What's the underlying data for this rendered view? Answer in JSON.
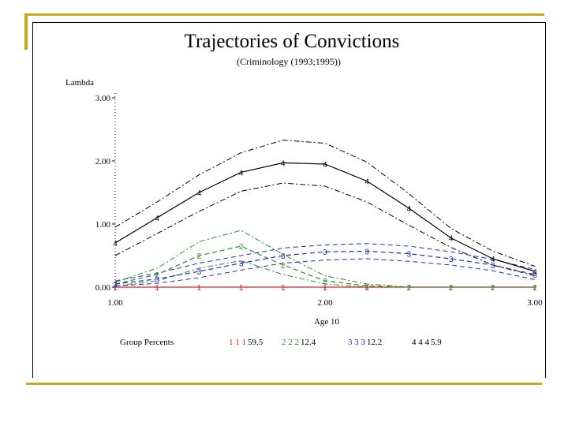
{
  "chart_data": {
    "type": "line",
    "title": "Trajectories of Convictions",
    "subtitle": "(Criminology (1993;1995))",
    "ylabel": "Lambda",
    "xlabel": "Age 10",
    "xlim": [
      1.0,
      3.0
    ],
    "ylim": [
      0.0,
      3.0
    ],
    "x_ticks": [
      "1.00",
      "2.00",
      "3.00"
    ],
    "y_ticks": [
      "0.00",
      "1.00",
      "2.00",
      "3.00"
    ],
    "x": [
      1.0,
      1.2,
      1.4,
      1.6,
      1.8,
      2.0,
      2.2,
      2.4,
      2.6,
      2.8,
      3.0
    ],
    "series": [
      {
        "name": "1",
        "color": "#d62020",
        "style": "solid",
        "values": [
          0.0,
          0.0,
          0.0,
          0.0,
          0.0,
          0.0,
          0.0,
          0.0,
          0.0,
          0.0,
          0.0
        ]
      },
      {
        "name": "2",
        "color": "#2e8b2e",
        "style": "dashed",
        "values": [
          0.05,
          0.2,
          0.5,
          0.65,
          0.35,
          0.1,
          0.02,
          0.0,
          0.0,
          0.0,
          0.0
        ]
      },
      {
        "name": "3",
        "color": "#1f2fb0",
        "style": "dashed",
        "values": [
          0.05,
          0.13,
          0.25,
          0.38,
          0.5,
          0.56,
          0.57,
          0.53,
          0.45,
          0.35,
          0.2
        ]
      },
      {
        "name": "4",
        "color": "#000000",
        "style": "solid",
        "values": [
          0.7,
          1.1,
          1.5,
          1.82,
          1.97,
          1.95,
          1.68,
          1.25,
          0.78,
          0.45,
          0.25
        ]
      }
    ],
    "extra_lines": [
      {
        "color": "#000000",
        "style": "dashdot",
        "values": [
          0.95,
          1.35,
          1.78,
          2.13,
          2.33,
          2.28,
          1.98,
          1.48,
          0.93,
          0.57,
          0.33
        ]
      },
      {
        "color": "#000000",
        "style": "dashdot",
        "values": [
          0.5,
          0.85,
          1.2,
          1.52,
          1.65,
          1.6,
          1.35,
          0.98,
          0.63,
          0.35,
          0.18
        ]
      },
      {
        "color": "#2e8b2e",
        "style": "dashdot",
        "values": [
          0.08,
          0.3,
          0.72,
          0.9,
          0.52,
          0.18,
          0.05,
          0.0,
          0.0,
          0.0,
          0.0
        ]
      },
      {
        "color": "#2e8b2e",
        "style": "dashdot",
        "values": [
          0.02,
          0.1,
          0.3,
          0.42,
          0.2,
          0.05,
          0.0,
          0.0,
          0.0,
          0.0,
          0.0
        ]
      },
      {
        "color": "#1f2fb0",
        "style": "dashed",
        "values": [
          0.1,
          0.22,
          0.38,
          0.5,
          0.62,
          0.67,
          0.69,
          0.65,
          0.56,
          0.44,
          0.28
        ]
      },
      {
        "color": "#1f2fb0",
        "style": "dashed",
        "values": [
          0.02,
          0.06,
          0.15,
          0.27,
          0.38,
          0.43,
          0.45,
          0.41,
          0.35,
          0.26,
          0.12
        ]
      }
    ],
    "legend": {
      "title": "Group Percents",
      "placement": "bottom",
      "entries": [
        {
          "markers": "1 1 1",
          "label": "59.5",
          "color": "#d62020"
        },
        {
          "markers": "2 2 2",
          "label": "12.4",
          "color": "#2e8b2e"
        },
        {
          "markers": "3 3 3",
          "label": "12.2",
          "color": "#1f2fb0"
        },
        {
          "markers": "4 4 4",
          "label": "5.9",
          "color": "#000000"
        }
      ]
    }
  }
}
